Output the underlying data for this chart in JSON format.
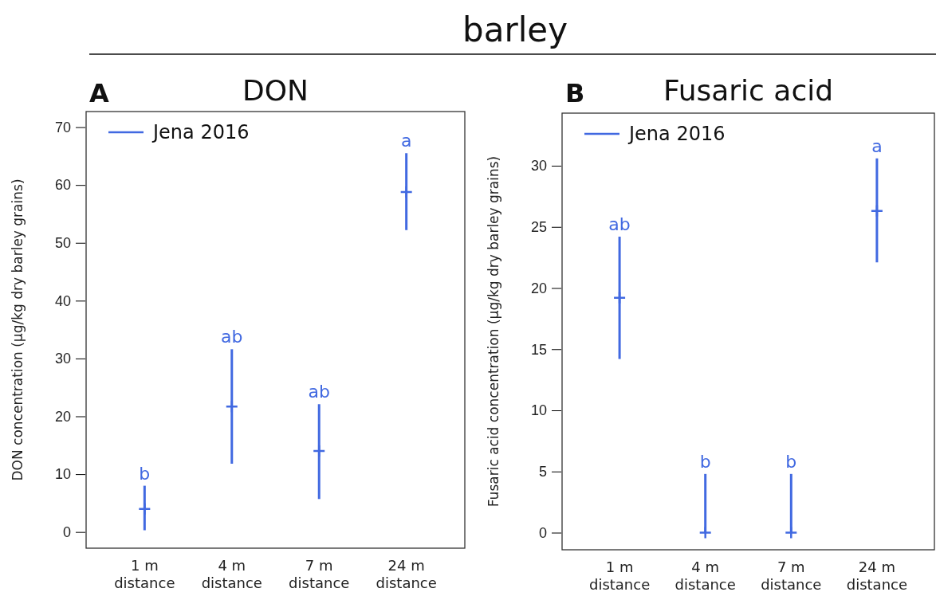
{
  "chart_data": [
    {
      "type": "scatter",
      "title": "DON",
      "ylabel": "DON concentration (µg/kg dry barley grains)",
      "categories": [
        "1 m\ndistance",
        "4 m\ndistance",
        "7 m\ndistance",
        "24 m\ndistance"
      ],
      "series": [
        {
          "name": "Jena 2016",
          "color": "#4169e1",
          "values": [
            4,
            21.7,
            14,
            58.8
          ],
          "errors": [
            [
              0.3,
              8
            ],
            [
              11.8,
              31.6
            ],
            [
              5.7,
              22.1
            ],
            [
              52.2,
              65.5
            ]
          ]
        }
      ],
      "ylim": [
        -2.8,
        72.7
      ],
      "marker": "cross",
      "yticks": [
        0,
        10,
        20,
        30,
        40,
        50,
        60,
        70
      ],
      "legend": "top left",
      "grid": false,
      "annotations": [
        "barley",
        "A",
        {
          "text": "b",
          "x": "1 m\ndistance",
          "y": 8
        },
        {
          "text": "ab",
          "x": "4 m\ndistance",
          "y": 31.6
        },
        {
          "text": "ab",
          "x": "7 m\ndistance",
          "y": 22.1
        },
        {
          "text": "a",
          "x": "24 m\ndistance",
          "y": 65.5
        }
      ]
    },
    {
      "type": "scatter",
      "title": "Fusaric acid",
      "ylabel": "Fusaric acid concentration (µg/kg dry barley grains)",
      "categories": [
        "1 m\ndistance",
        "4 m\ndistance",
        "7 m\ndistance",
        "24 m\ndistance"
      ],
      "series": [
        {
          "name": "Jena 2016",
          "color": "#4169e1",
          "values": [
            19.2,
            0,
            0,
            26.3
          ],
          "errors": [
            [
              14.2,
              24.2
            ],
            [
              0,
              4.8
            ],
            [
              0,
              4.8
            ],
            [
              22.1,
              30.6
            ]
          ]
        }
      ],
      "ylim": [
        -1.4,
        34.3
      ],
      "marker": "cross",
      "yticks": [
        0,
        5,
        10,
        15,
        20,
        25,
        30
      ],
      "legend": "top left",
      "grid": false,
      "annotations": [
        "B",
        {
          "text": "ab",
          "x": "1 m\ndistance",
          "y": 24.2
        },
        {
          "text": "b",
          "x": "4 m\ndistance",
          "y": 4.8
        },
        {
          "text": "b",
          "x": "7 m\ndistance",
          "y": 4.8
        },
        {
          "text": "a",
          "x": "24 m\ndistance",
          "y": 30.6
        }
      ]
    }
  ]
}
